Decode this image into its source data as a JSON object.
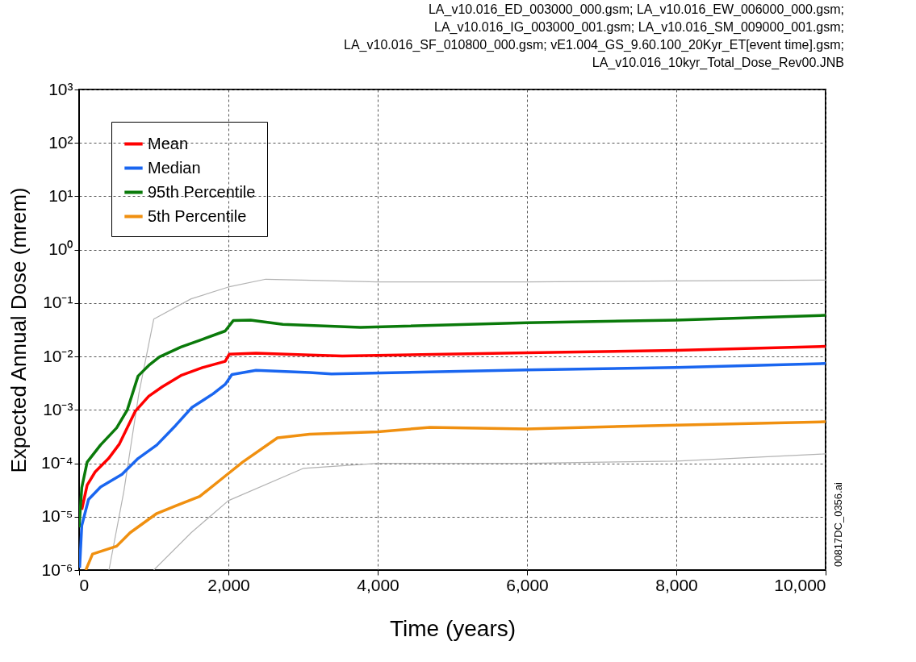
{
  "chart_data": {
    "type": "line",
    "title": "LA_v10.016_ED_003000_000.gsm; LA_v10.016_EW_006000_000.gsm; LA_v10.016_IG_003000_001.gsm; LA_v10.016_SM_009000_001.gsm; LA_v10.016_SF_010800_000.gsm; vE1.004_GS_9.60.100_20Kyr_ET[event time].gsm; LA_v10.016_10kyr_Total_Dose_Rev00.JNB",
    "xlabel": "Time (years)",
    "ylabel": "Expected Annual Dose (mrem)",
    "annotations": [
      "00817DC_0356.ai"
    ],
    "log": "y",
    "grid": true,
    "legend": "top left",
    "line_style": "solid",
    "xlim": [
      0,
      10000
    ],
    "xticks": [
      0,
      {
        "value": 2000,
        "label": "2,000"
      },
      {
        "value": 4000,
        "label": "4,000"
      },
      {
        "value": 6000,
        "label": "6,000"
      },
      {
        "value": 8000,
        "label": "8,000"
      },
      {
        "value": 10000,
        "label": "10,000"
      }
    ],
    "ylim": [
      1e-06,
      1000
    ],
    "yticks": [
      {
        "value": 1e-06,
        "label": "10⁻⁶"
      },
      {
        "value": 1e-05,
        "label": "10⁻⁵"
      },
      {
        "value": 0.0001,
        "label": "10⁻⁴"
      },
      {
        "value": 0.001,
        "label": "10⁻³"
      },
      {
        "value": 0.01,
        "label": "10⁻²"
      },
      {
        "value": 0.1,
        "label": "10⁻¹"
      },
      {
        "value": 1,
        "label": "10⁰"
      },
      {
        "value": 10,
        "label": "10¹"
      },
      {
        "value": 100,
        "label": "10²"
      },
      {
        "value": 1000,
        "label": "10³"
      }
    ],
    "series": [
      {
        "color": "#b3b3b3",
        "x": [
          400,
          600,
          800,
          1000,
          1500,
          2000,
          2500,
          3000,
          4000,
          6000,
          8000,
          10000
        ],
        "values": [
          1e-06,
          3e-05,
          0.002,
          0.05,
          0.12,
          0.2,
          0.28,
          0.27,
          0.25,
          0.25,
          0.26,
          0.27
        ]
      },
      {
        "color": "#b3b3b3",
        "x": [
          1000,
          1500,
          2000,
          3000,
          4000,
          6000,
          8000,
          10000
        ],
        "values": [
          1e-06,
          5e-06,
          2e-05,
          8e-05,
          0.0001,
          0.0001,
          0.00011,
          0.00015
        ]
      },
      {
        "name": "Mean",
        "color": "#ff0000",
        "x": [
          36,
          108,
          215,
          395,
          540,
          754,
          933,
          1113,
          1364,
          1652,
          1957,
          2011,
          2370,
          3088,
          3525,
          6000,
          8000,
          10000
        ],
        "values": [
          1.35e-05,
          3.9e-05,
          6.9e-05,
          0.000123,
          0.00023,
          0.00095,
          0.0018,
          0.0027,
          0.0044,
          0.0062,
          0.0081,
          0.011,
          0.0115,
          0.0107,
          0.0102,
          0.0117,
          0.013,
          0.0155
        ]
      },
      {
        "name": "Median",
        "color": "#1a66f0",
        "x": [
          7,
          36,
          126,
          287,
          575,
          790,
          1041,
          1293,
          1508,
          1795,
          1957,
          2047,
          2370,
          3088,
          3380,
          6000,
          8000,
          10000
        ],
        "values": [
          1.1e-06,
          6.8e-06,
          2.1e-05,
          3.6e-05,
          6.2e-05,
          0.000123,
          0.00022,
          0.00051,
          0.0011,
          0.002,
          0.003,
          0.0046,
          0.0055,
          0.005,
          0.0047,
          0.0056,
          0.0062,
          0.0074
        ]
      },
      {
        "name": "95th Percentile",
        "color": "#0a7a0a",
        "x": [
          0,
          36,
          108,
          287,
          503,
          646,
          790,
          933,
          1077,
          1364,
          1652,
          1957,
          2065,
          2298,
          2729,
          3770,
          6000,
          8000,
          10000
        ],
        "values": [
          6.3e-06,
          3.5e-05,
          0.000105,
          0.00022,
          0.00046,
          0.001,
          0.0043,
          0.0068,
          0.0098,
          0.015,
          0.021,
          0.03,
          0.047,
          0.048,
          0.04,
          0.035,
          0.043,
          0.048,
          0.059
        ]
      },
      {
        "name": "5th Percentile",
        "color": "#f09010",
        "x": [
          90,
          180,
          503,
          682,
          1041,
          1293,
          1616,
          1939,
          2190,
          2657,
          3088,
          4000,
          4700,
          6000,
          8000,
          10000
        ],
        "values": [
          1e-06,
          2e-06,
          2.8e-06,
          5e-06,
          1.15e-05,
          1.6e-05,
          2.4e-05,
          5.5e-05,
          0.000105,
          0.0003,
          0.00035,
          0.00039,
          0.00047,
          0.00044,
          0.00052,
          0.0006
        ]
      }
    ]
  }
}
